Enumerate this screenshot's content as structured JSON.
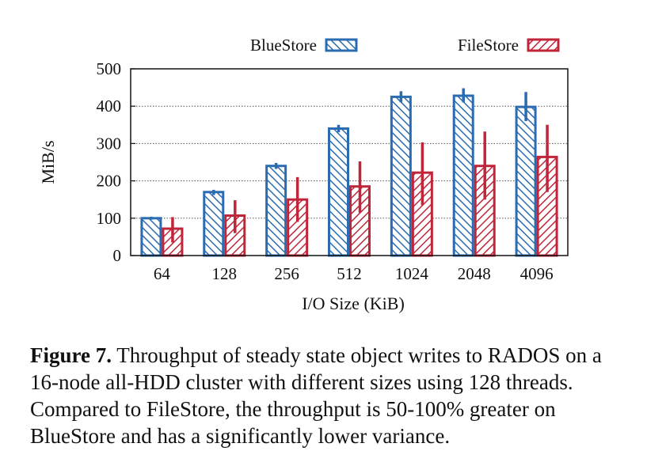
{
  "chart_data": {
    "type": "bar",
    "title": "",
    "xlabel": "I/O Size (KiB)",
    "ylabel": "MiB/s",
    "ylim": [
      0,
      500
    ],
    "yticks": [
      0,
      100,
      200,
      300,
      400,
      500
    ],
    "grid": "horizontal dotted",
    "legend_position": "top",
    "categories": [
      "64",
      "128",
      "256",
      "512",
      "1024",
      "2048",
      "4096"
    ],
    "series": [
      {
        "name": "BlueStore",
        "color": "#2b6cb0",
        "hatch": "backslash",
        "values": [
          100,
          170,
          240,
          340,
          425,
          428,
          398
        ],
        "err_low": [
          96,
          162,
          232,
          330,
          410,
          410,
          360
        ],
        "err_high": [
          104,
          176,
          248,
          350,
          440,
          448,
          438
        ]
      },
      {
        "name": "FileStore",
        "color": "#c0253a",
        "hatch": "slash",
        "values": [
          72,
          107,
          150,
          185,
          222,
          240,
          264
        ],
        "err_low": [
          35,
          60,
          90,
          115,
          135,
          150,
          170
        ],
        "err_high": [
          103,
          148,
          210,
          252,
          303,
          332,
          350
        ]
      }
    ]
  },
  "caption": {
    "label": "Figure 7.",
    "text": " Throughput of steady state object writes to RADOS on a 16-node all-HDD cluster with different sizes using 128 threads. Compared to FileStore, the throughput is 50-100% greater on BlueStore and has a significantly lower variance."
  }
}
